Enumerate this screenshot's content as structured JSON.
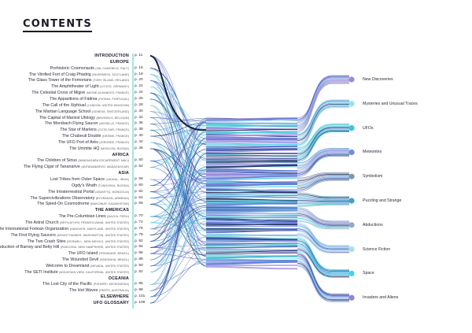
{
  "page_title": "CONTENTS",
  "sections": [
    {
      "name": "INTRODUCTION",
      "page": "p. 11",
      "entries": []
    },
    {
      "name": "EUROPE",
      "page": "",
      "entries": [
        {
          "title": "Prehistoric Cosmonauts",
          "location": "(VAL CAMONICA, ITALY)",
          "page": "p. 16"
        },
        {
          "title": "The Vitrified Fort of Craig Phadrig",
          "location": "(INVERNESS, SCOTLAND)",
          "page": "p. 18"
        },
        {
          "title": "The Glass Tower of the Fomorians",
          "location": "(TORY ISLAND, IRELAND)",
          "page": "p. 20"
        },
        {
          "title": "The Amphitheater of Light",
          "location": "(LITZOS, GERMANY)",
          "page": "p. 22"
        },
        {
          "title": "The Celestial Cross of Migné",
          "location": "(MIGNÉ-AUXANCES, FRANCE)",
          "page": "p. 24"
        },
        {
          "title": "The Apparitions of Fátima",
          "location": "(FÁTIMA, PORTUGAL)",
          "page": "p. 26"
        },
        {
          "title": "The Call of the Xiphtual",
          "location": "(LONDON, UNITED KINGDOM)",
          "page": "p. 28"
        },
        {
          "title": "The Martian Language School",
          "location": "(GENEVA, SWITZERLAND)",
          "page": "p. 30"
        },
        {
          "title": "The Capital of Marxist Ufology",
          "location": "(BRUSSELS, BELGIUM)",
          "page": "p. 32"
        },
        {
          "title": "The Morsbach Flying Saucer",
          "location": "(MOSELLE, FRANCE)",
          "page": "p. 36"
        },
        {
          "title": "The Star of Marlens",
          "location": "(COTE-SUR, FRANCE)",
          "page": "p. 38"
        },
        {
          "title": "The Chabeuil Double",
          "location": "(DRÔME, FRANCE)",
          "page": "p. 40"
        },
        {
          "title": "The UFO Port of Arès",
          "location": "(GIRONDE, FRANCE)",
          "page": "p. 42"
        },
        {
          "title": "The Ummite HQ",
          "location": "(MOSCOW, RUSSIA)",
          "page": "p. 46"
        }
      ]
    },
    {
      "name": "AFRICA",
      "page": "",
      "entries": [
        {
          "title": "The Children of Sirius",
          "location": "(BANDIAGARA ESCARPMENT, MALI)",
          "page": "p. 50"
        },
        {
          "title": "The Flying Cigar of Tananarive",
          "location": "(ANTANANARIVO, MADAGASCAR)",
          "page": "p. 52"
        }
      ]
    },
    {
      "name": "ASIA",
      "page": "",
      "entries": [
        {
          "title": "Lost Tribes from Outer Space",
          "location": "(LAHAUL, INDIA)",
          "page": "p. 58"
        },
        {
          "title": "Ogdy's Wrath",
          "location": "(TUNGUSKA, RUSSIA)",
          "page": "p. 60"
        },
        {
          "title": "The Intraterrestrial Portal",
          "location": "(ASANTYQ, MONGOLIA)",
          "page": "p. 62"
        },
        {
          "title": "The Supercivilizations Observatory",
          "location": "(BYURAKAN, ARMENIA)",
          "page": "p. 64"
        },
        {
          "title": "The Spied-On Cosmodrome",
          "location": "(BAIKONUR, KAZAKHSTAN)",
          "page": "p. 66"
        }
      ]
    },
    {
      "name": "THE AMERICAS",
      "page": "",
      "entries": [
        {
          "title": "The Pre-Columbian Lines",
          "location": "(NAZCA, PERU)",
          "page": "p. 70"
        },
        {
          "title": "The Astral Church",
          "location": "(BRYN ATHYN, PENNSYLVANIA, UNITED STATES)",
          "page": "p. 72"
        },
        {
          "title": "The International Fortean Organization",
          "location": "(HANOVER, MARYLAND, UNITED STATES)",
          "page": "p. 76"
        },
        {
          "title": "The First Flying Saucers",
          "location": "(MOUNT RAINIER, WASHINGTON, UNITED STATES)",
          "page": "p. 78"
        },
        {
          "title": "The Two Crash Sites",
          "location": "(ROSWELL, NEW MEXICO, UNITED STATES)",
          "page": "p. 82"
        },
        {
          "title": "The Abduction of Barney and Betty Hill",
          "location": "(PANCOSIA, NEW HAMPSHIRE, UNITED STATES)",
          "page": "p. 84"
        },
        {
          "title": "The UFO Island",
          "location": "(TRINIDADE, BRAZIL)",
          "page": "p. 86"
        },
        {
          "title": "The Wounded Devil",
          "location": "(VARGINHA, BRAZIL)",
          "page": "p. 88"
        },
        {
          "title": "Welcome to Dreamland",
          "location": "(NEVADA, UNITED STATES)",
          "page": "p. 90"
        },
        {
          "title": "The SETI Institute",
          "location": "(MOUNTAIN VIEW, CALIFORNIA, UNITED STATES)",
          "page": "p. 92"
        }
      ]
    },
    {
      "name": "OCEANIA",
      "page": "",
      "entries": [
        {
          "title": "The Lost City of the Pacific",
          "location": "(POHNPEI, MICRONESIA)",
          "page": "p. 96"
        },
        {
          "title": "The Hot Waves",
          "location": "(PERTH, AUSTRALIA)",
          "page": "p. 98"
        }
      ]
    },
    {
      "name": "ELSEWHERE",
      "page": "p. 101",
      "entries": []
    },
    {
      "name": "UFO GLOSSARY",
      "page": "p. 109",
      "entries": []
    }
  ],
  "themes": [
    {
      "name": "New Discoveries",
      "color": "#9b8ad8"
    },
    {
      "name": "Mysteries and Unusual Traces",
      "color": "#8fe6ea"
    },
    {
      "name": "UFOs",
      "color": "#3cc3dc"
    },
    {
      "name": "Meteorites",
      "color": "#6f8fd8"
    },
    {
      "name": "Symbolism",
      "color": "#7f9aa6"
    },
    {
      "name": "Puzzling and Strange",
      "color": "#49a0b8"
    },
    {
      "name": "Abductions",
      "color": "#98a8c4"
    },
    {
      "name": "Science Fiction",
      "color": "#a8e0ea"
    },
    {
      "name": "Space",
      "color": "#40d4ea"
    },
    {
      "name": "Invaders and Aliens",
      "color": "#8f84dc"
    }
  ],
  "colors": {
    "accent_line": "#49c9dc",
    "hub": "#16243a",
    "text": "#1d1d2b"
  }
}
